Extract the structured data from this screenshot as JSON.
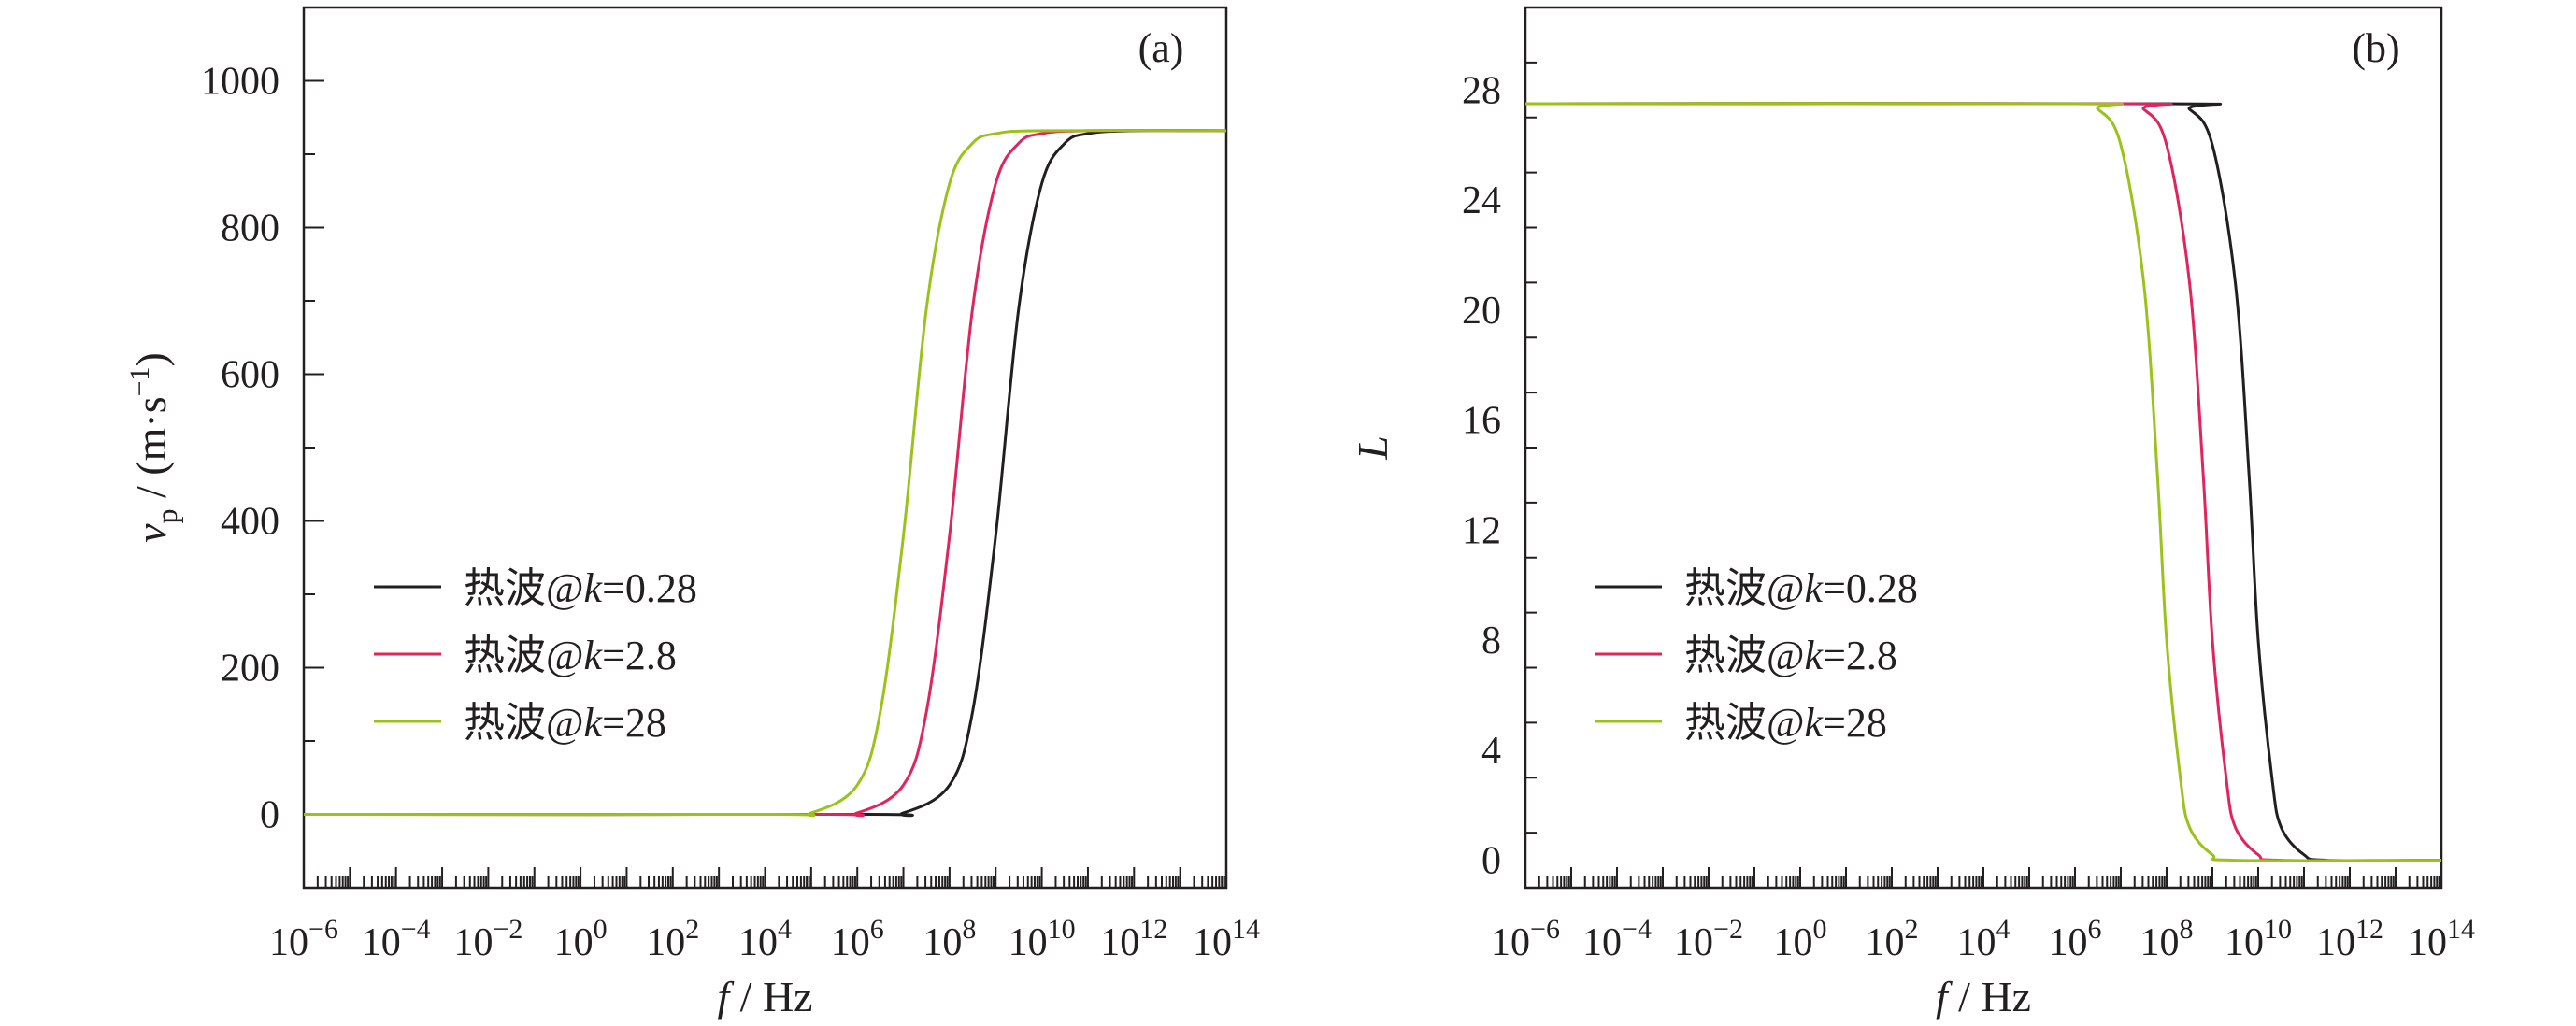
{
  "chart_data": [
    {
      "type": "line",
      "panel_label": "(a)",
      "xlabel": "f / Hz",
      "ylabel": "vp / (m·s−1)",
      "x_scale": "log",
      "x_exponent_range": [
        -6,
        14
      ],
      "xtick_exponents": [
        -6,
        -4,
        -2,
        0,
        2,
        4,
        6,
        8,
        10,
        12,
        14
      ],
      "ylim": [
        -100,
        1100
      ],
      "yticks": [
        0,
        200,
        400,
        600,
        800,
        1000
      ],
      "ytick_labels": [
        "0",
        "200",
        "400",
        "600",
        "800",
        "1000"
      ],
      "legend_position": "lower-left",
      "series": [
        {
          "name": "热波@k=0.28",
          "color": "#231f20",
          "x": [
            "1e-6",
            "1e6",
            "1e7",
            "1e8",
            "1e8.5",
            "1e9",
            "1e9.5",
            "1e10",
            "1e10.5",
            "1e11",
            "1e12",
            "1e14"
          ],
          "y": [
            0,
            0,
            2,
            40,
            140,
            380,
            690,
            860,
            915,
            928,
            932,
            932
          ]
        },
        {
          "name": "热波@k=2.8",
          "color": "#e0245e",
          "x": [
            "1e-6",
            "1e5",
            "1e6",
            "1e7",
            "1e7.5",
            "1e8",
            "1e8.5",
            "1e9",
            "1e9.5",
            "1e10",
            "1e11",
            "1e14"
          ],
          "y": [
            0,
            0,
            2,
            40,
            140,
            380,
            690,
            860,
            915,
            928,
            932,
            932
          ]
        },
        {
          "name": "热波@k=28",
          "color": "#9bc21b",
          "x": [
            "1e-6",
            "1e4",
            "1e5",
            "1e6",
            "1e6.5",
            "1e7",
            "1e7.5",
            "1e8",
            "1e8.5",
            "1e9",
            "1e10",
            "1e14"
          ],
          "y": [
            0,
            0,
            2,
            40,
            140,
            380,
            690,
            860,
            915,
            928,
            932,
            932
          ]
        }
      ]
    },
    {
      "type": "line",
      "panel_label": "(b)",
      "xlabel": "f / Hz",
      "ylabel": "L",
      "x_scale": "log",
      "x_exponent_range": [
        -6,
        14
      ],
      "xtick_exponents": [
        -6,
        -4,
        -2,
        0,
        2,
        4,
        6,
        8,
        10,
        12,
        14
      ],
      "ylim": [
        -1,
        31
      ],
      "yticks": [
        0,
        4,
        8,
        12,
        16,
        20,
        24,
        28
      ],
      "ytick_labels": [
        "0",
        "4",
        "8",
        "12",
        "16",
        "20",
        "24",
        "28"
      ],
      "legend_position": "lower-left",
      "series": [
        {
          "name": "热波@k=0.28",
          "color": "#231f20",
          "x": [
            "1e-6",
            "1e8",
            "1e8.5",
            "1e9",
            "1e9.5",
            "1e9.8",
            "1e10",
            "1e10.3",
            "1e10.5",
            "1e11",
            "1e11.5",
            "1e14"
          ],
          "y": [
            27.5,
            27.5,
            27.3,
            26,
            21,
            14,
            8,
            3,
            1.2,
            0.2,
            0,
            0
          ]
        },
        {
          "name": "热波@k=2.8",
          "color": "#e0245e",
          "x": [
            "1e-6",
            "1e7",
            "1e7.5",
            "1e8",
            "1e8.5",
            "1e8.8",
            "1e9",
            "1e9.3",
            "1e9.5",
            "1e10",
            "1e10.5",
            "1e14"
          ],
          "y": [
            27.5,
            27.5,
            27.3,
            26,
            21,
            14,
            8,
            3,
            1.2,
            0.2,
            0,
            0
          ]
        },
        {
          "name": "热波@k=28",
          "color": "#9bc21b",
          "x": [
            "1e-6",
            "1e6",
            "1e6.5",
            "1e7",
            "1e7.5",
            "1e7.8",
            "1e8",
            "1e8.3",
            "1e8.5",
            "1e9",
            "1e9.5",
            "1e14"
          ],
          "y": [
            27.5,
            27.5,
            27.3,
            26,
            21,
            14,
            8,
            3,
            1.2,
            0.2,
            0,
            0
          ]
        }
      ]
    }
  ]
}
